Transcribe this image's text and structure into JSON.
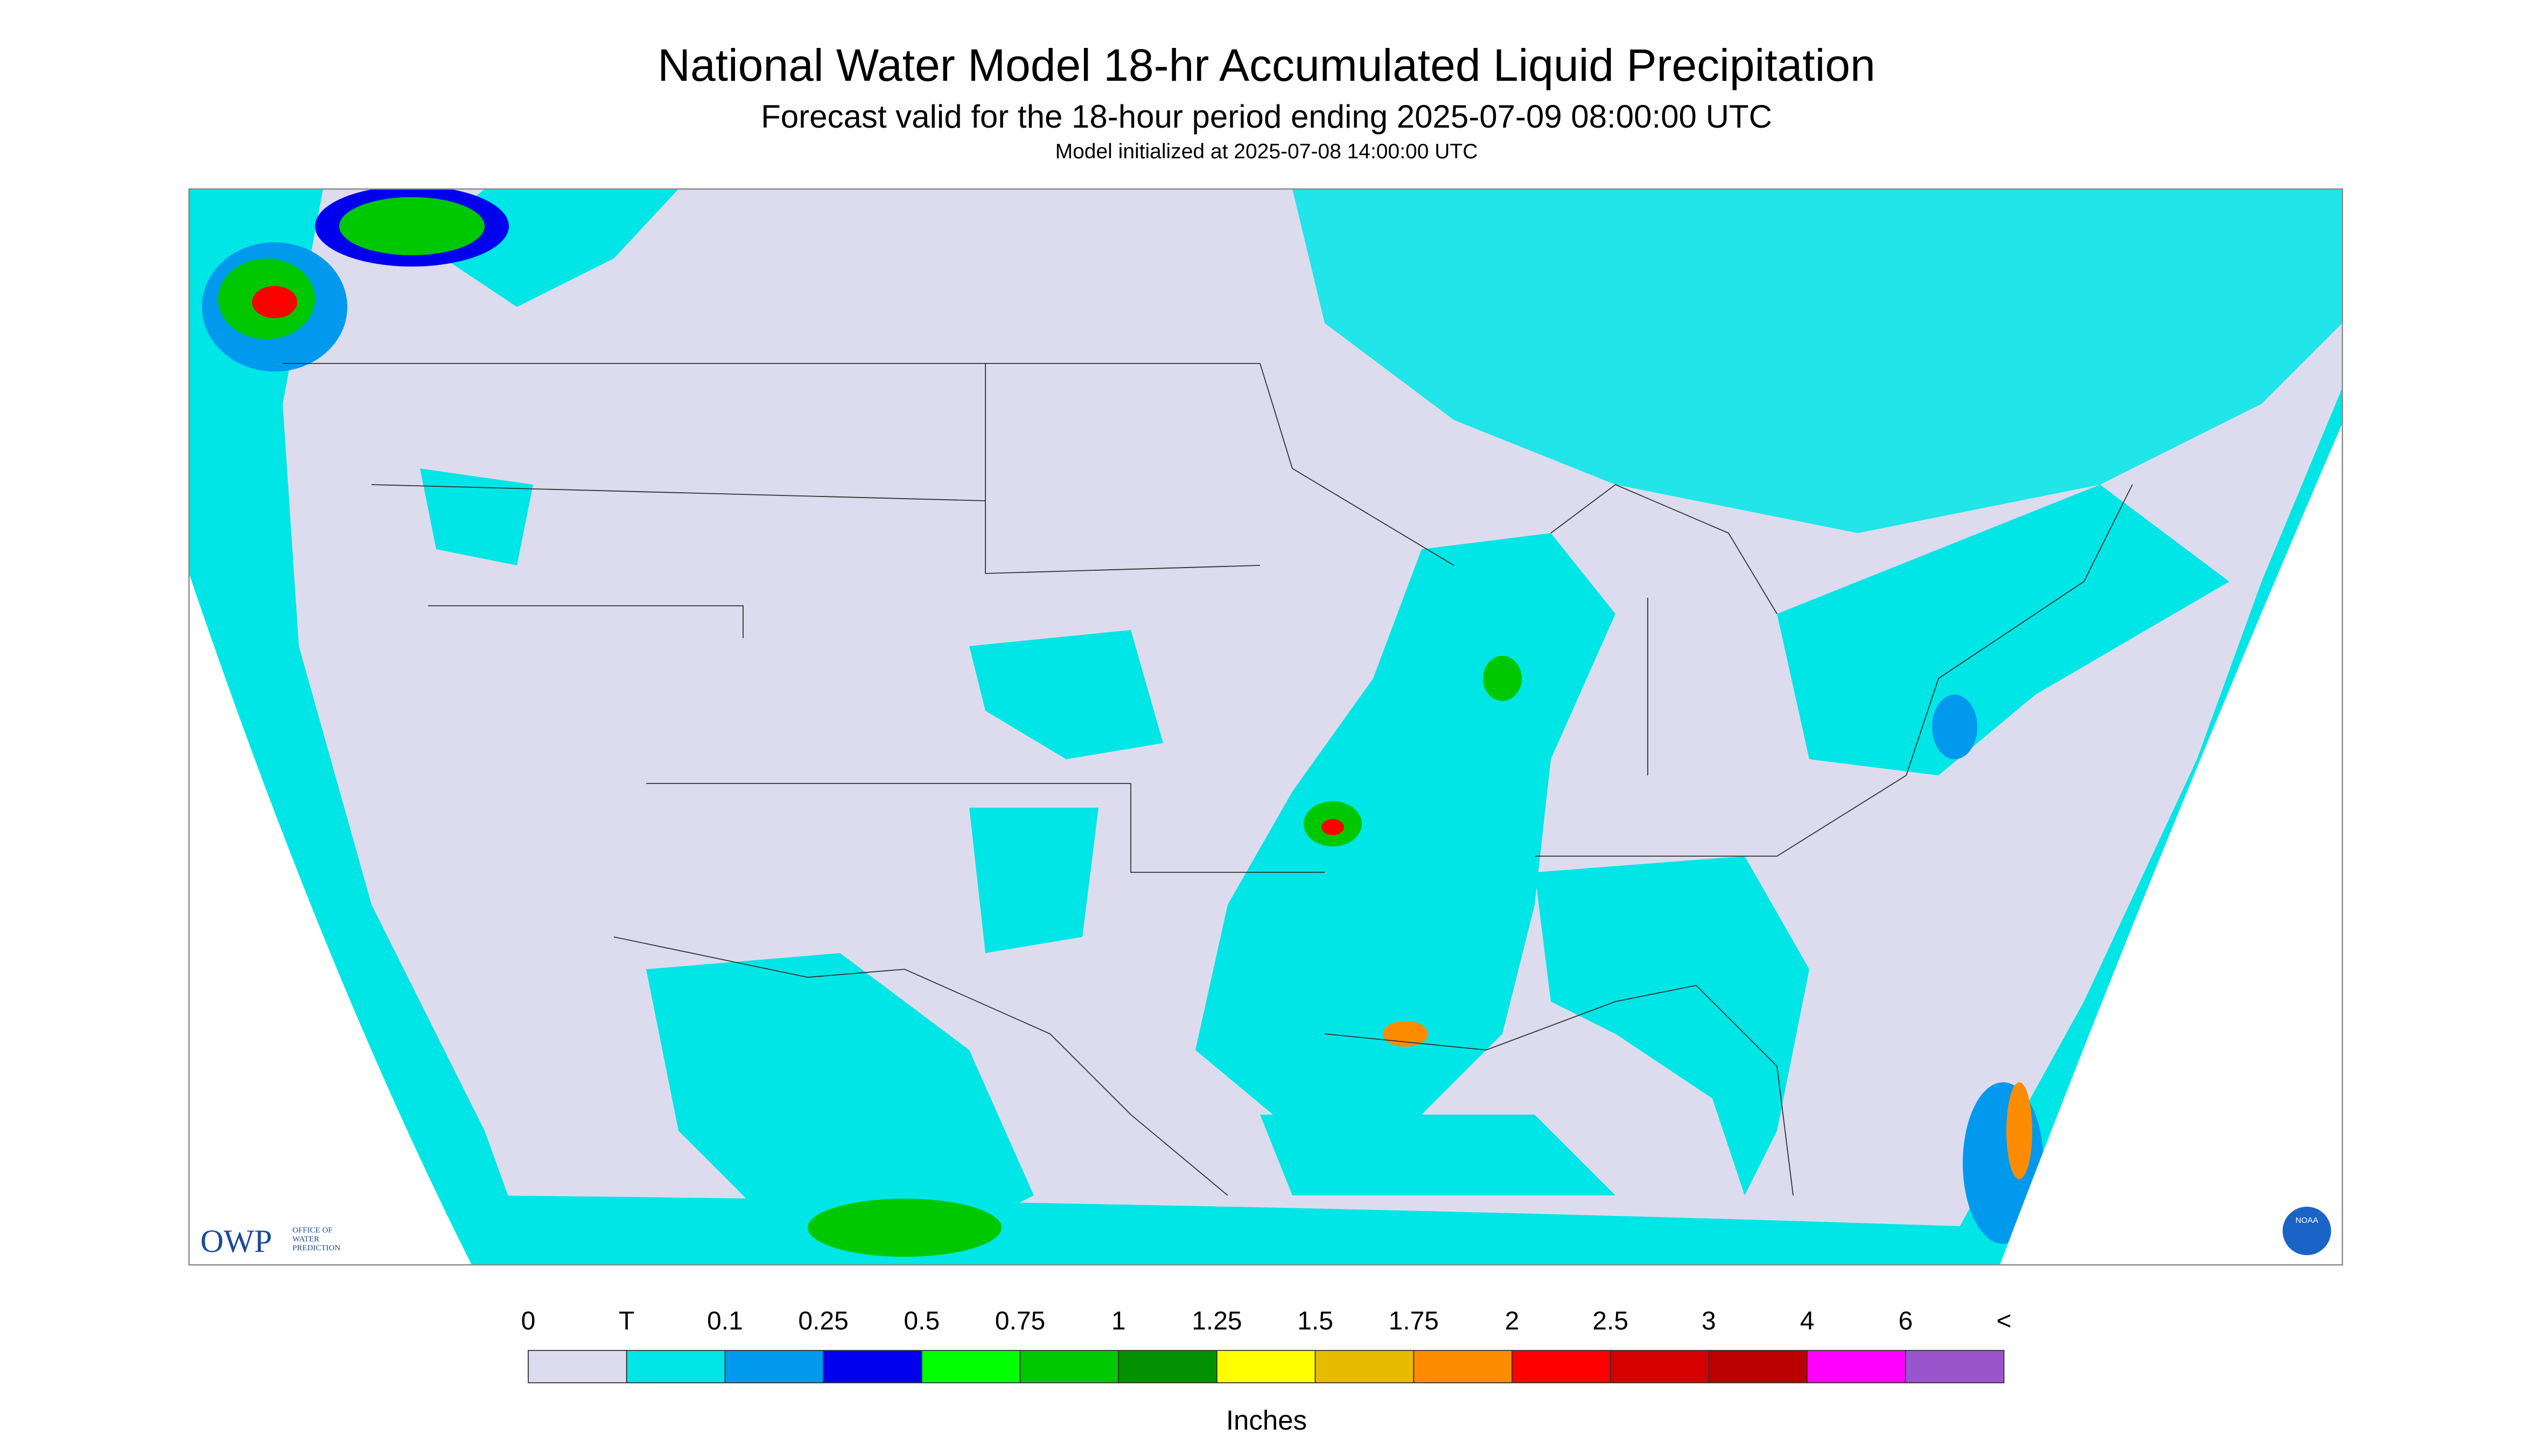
{
  "header": {
    "title": "National Water Model 18-hr Accumulated Liquid Precipitation",
    "subtitle": "Forecast valid for the 18-hour period ending 2025-07-09 08:00:00 UTC",
    "initialized": "Model initialized at 2025-07-08 14:00:00 UTC"
  },
  "legend": {
    "labels": [
      "0",
      "T",
      "0.1",
      "0.25",
      "0.5",
      "0.75",
      "1",
      "1.25",
      "1.5",
      "1.75",
      "2",
      "2.5",
      "3",
      "4",
      "6",
      "<"
    ],
    "colors": [
      "#dcdcee",
      "#00e6e6",
      "#0099ee",
      "#0000ee",
      "#00ff00",
      "#00c800",
      "#009000",
      "#ffff00",
      "#e6bb00",
      "#ff8c00",
      "#ff0000",
      "#d60000",
      "#bb0000",
      "#ff00ff",
      "#9955cc"
    ],
    "unit": "Inches"
  },
  "logos": {
    "owp": "OWP",
    "owp_full": [
      "OFFICE OF",
      "WATER",
      "PREDICTION"
    ],
    "noaa": "NOAA"
  }
}
